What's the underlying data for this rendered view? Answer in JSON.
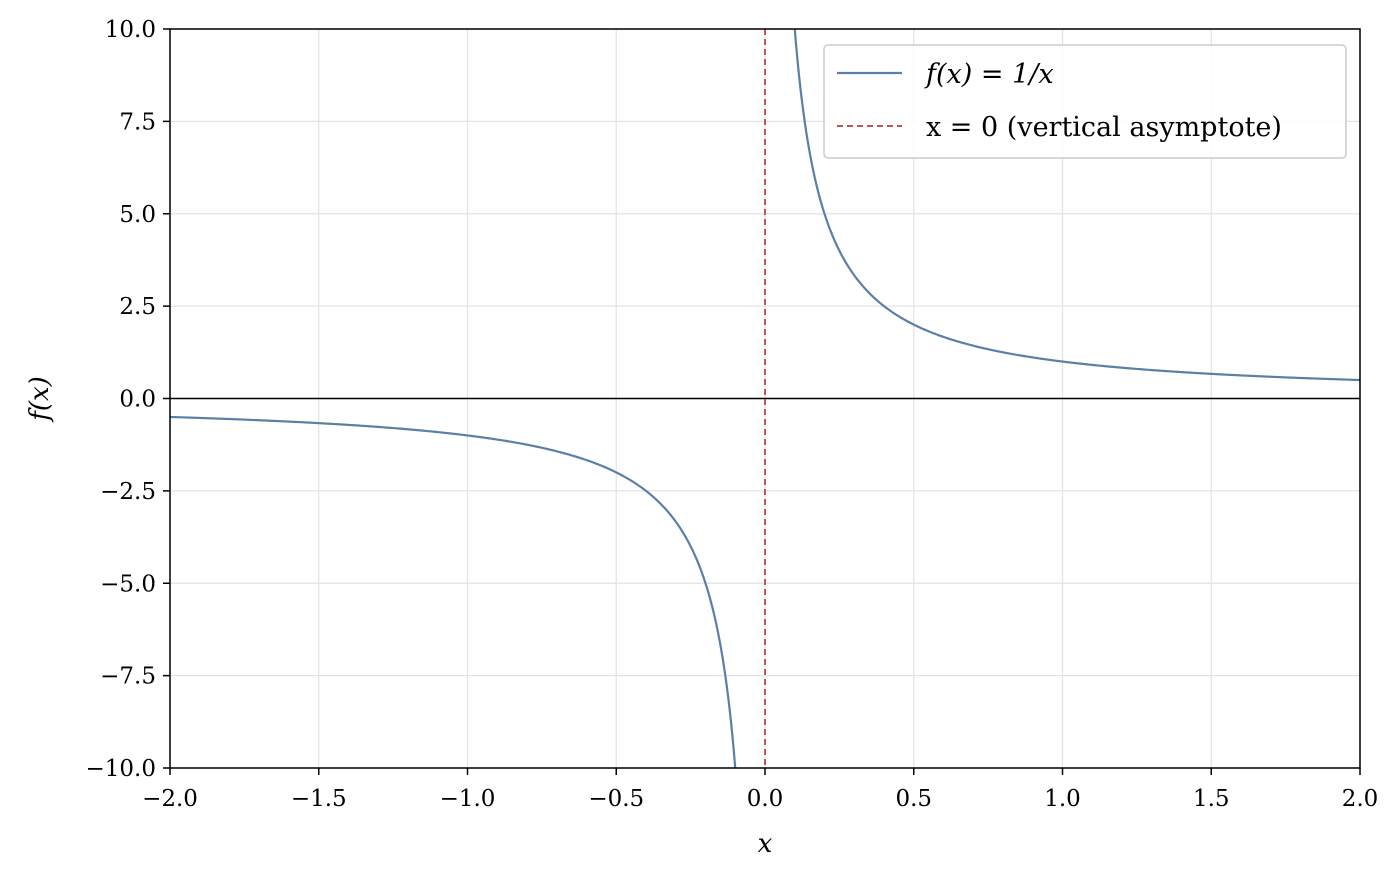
{
  "chart_data": {
    "type": "line",
    "title": "",
    "xlabel": "x",
    "ylabel": "f(x)",
    "xlim": [
      -2.0,
      2.0
    ],
    "ylim": [
      -10.0,
      10.0
    ],
    "x_ticks": [
      -2.0,
      -1.5,
      -1.0,
      -0.5,
      0.0,
      0.5,
      1.0,
      1.5,
      2.0
    ],
    "x_tick_labels": [
      "−2.0",
      "−1.5",
      "−1.0",
      "−0.5",
      "0.0",
      "0.5",
      "1.0",
      "1.5",
      "2.0"
    ],
    "y_ticks": [
      -10.0,
      -7.5,
      -5.0,
      -2.5,
      0.0,
      2.5,
      5.0,
      7.5,
      10.0
    ],
    "y_tick_labels": [
      "−10.0",
      "−7.5",
      "−5.0",
      "−2.5",
      "0.0",
      "2.5",
      "5.0",
      "7.5",
      "10.0"
    ],
    "grid": true,
    "legend_position": "top-right",
    "series": [
      {
        "name": "f(x) = 1/x",
        "function": "1/x",
        "color": "#5b7fa8",
        "style": "solid",
        "x": [
          -2.0,
          -1.5,
          -1.0,
          -0.75,
          -0.5,
          -0.4,
          -0.3,
          -0.25,
          -0.2,
          -0.15,
          -0.125,
          -0.1,
          0.1,
          0.125,
          0.15,
          0.2,
          0.25,
          0.3,
          0.4,
          0.5,
          0.75,
          1.0,
          1.5,
          2.0
        ],
        "y": [
          -0.5,
          -0.667,
          -1.0,
          -1.333,
          -2.0,
          -2.5,
          -3.333,
          -4.0,
          -5.0,
          -6.667,
          -8.0,
          -10.0,
          10.0,
          8.0,
          6.667,
          5.0,
          4.0,
          3.333,
          2.5,
          2.0,
          1.333,
          1.0,
          0.667,
          0.5
        ]
      },
      {
        "name": "x = 0 (vertical asymptote)",
        "type": "vline",
        "x_value": 0.0,
        "color": "#c0555c",
        "style": "dashed"
      }
    ],
    "reference_lines": [
      {
        "type": "hline",
        "y_value": 0.0,
        "color": "#000000"
      }
    ]
  }
}
